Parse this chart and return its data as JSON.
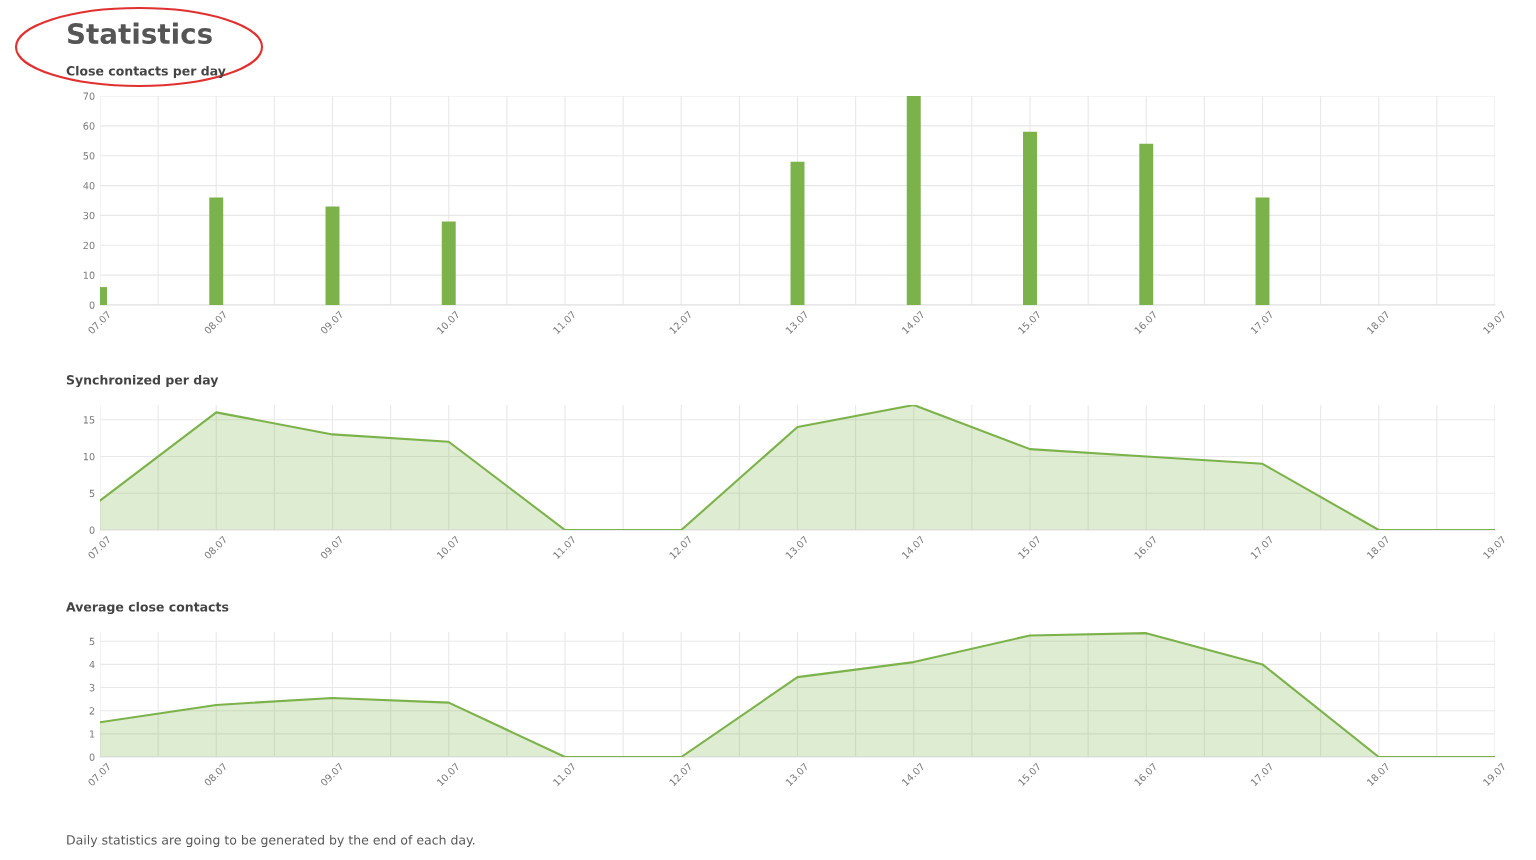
{
  "chart_data": [
    {
      "type": "bar",
      "title": "Statistics",
      "subtitle": "Close contacts per day",
      "categories": [
        "07.07",
        "08.07",
        "09.07",
        "10.07",
        "11.07",
        "12.07",
        "13.07",
        "14.07",
        "15.07",
        "16.07",
        "17.07",
        "18.07",
        "19.07"
      ],
      "values": [
        6,
        36,
        33,
        28,
        0,
        0,
        48,
        70,
        58,
        54,
        36,
        0,
        0
      ],
      "color": "#7cb24a",
      "ylim": [
        0,
        70
      ],
      "yticks": [
        0,
        10,
        20,
        30,
        40,
        50,
        60,
        70
      ],
      "grid": true
    },
    {
      "type": "area",
      "title": "Synchronized per day",
      "categories": [
        "07.07",
        "08.07",
        "09.07",
        "10.07",
        "11.07",
        "12.07",
        "13.07",
        "14.07",
        "15.07",
        "16.07",
        "17.07",
        "18.07",
        "19.07"
      ],
      "values": [
        4,
        16,
        13,
        12,
        0,
        0,
        14,
        17,
        11,
        10,
        9,
        0,
        0
      ],
      "color": "#7cb24a",
      "ylim": [
        0,
        17
      ],
      "yticks": [
        0,
        5,
        10,
        15
      ],
      "grid": true
    },
    {
      "type": "area",
      "title": "Average close contacts",
      "categories": [
        "07.07",
        "08.07",
        "09.07",
        "10.07",
        "11.07",
        "12.07",
        "13.07",
        "14.07",
        "15.07",
        "16.07",
        "17.07",
        "18.07",
        "19.07"
      ],
      "values": [
        1.5,
        2.25,
        2.55,
        2.35,
        0,
        0,
        3.45,
        4.1,
        5.25,
        5.35,
        4,
        0,
        0
      ],
      "color": "#7cb24a",
      "ylim": [
        0,
        5.4
      ],
      "yticks": [
        0,
        1,
        2,
        3,
        4,
        5
      ],
      "grid": true,
      "annotations": [
        "Daily statistics are going to be generated by the end of each day."
      ]
    }
  ]
}
